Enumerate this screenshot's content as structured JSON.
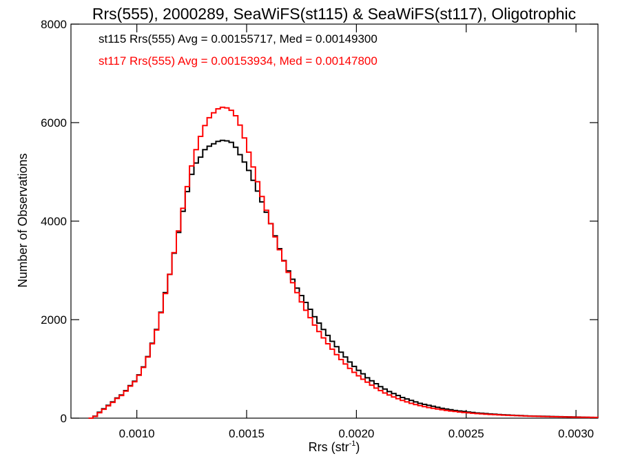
{
  "chart_data": {
    "type": "line",
    "title": "Rrs(555), 2000289, SeaWiFS(st115) & SeaWiFS(st117), Oligotrophic",
    "xlabel": "Rrs (str",
    "xlabel_sup": "-1",
    "xlabel_close": ")",
    "ylabel": "Number of Observations",
    "xlim": [
      0.0007,
      0.0031
    ],
    "ylim": [
      0,
      8000
    ],
    "x_ticks": [
      0.001,
      0.0015,
      0.002,
      0.0025,
      0.003
    ],
    "x_tick_labels": [
      "0.0010",
      "0.0015",
      "0.0020",
      "0.0025",
      "0.0030"
    ],
    "y_ticks": [
      0,
      2000,
      4000,
      6000,
      8000
    ],
    "y_tick_labels": [
      "0",
      "2000",
      "4000",
      "6000",
      "8000"
    ],
    "step": "histogram",
    "legend_position": "top-left",
    "series": [
      {
        "name": "st115",
        "color": "#000000",
        "annotation": "st115 Rrs(555) Avg = 0.00155717, Med = 0.00149300",
        "points": [
          [
            0.00078,
            0
          ],
          [
            0.0008,
            40
          ],
          [
            0.00082,
            120
          ],
          [
            0.00084,
            190
          ],
          [
            0.00086,
            260
          ],
          [
            0.00088,
            330
          ],
          [
            0.0009,
            410
          ],
          [
            0.00092,
            470
          ],
          [
            0.00094,
            560
          ],
          [
            0.00096,
            660
          ],
          [
            0.00098,
            750
          ],
          [
            0.001,
            880
          ],
          [
            0.00102,
            1040
          ],
          [
            0.00104,
            1250
          ],
          [
            0.00106,
            1520
          ],
          [
            0.00108,
            1800
          ],
          [
            0.0011,
            2150
          ],
          [
            0.00112,
            2550
          ],
          [
            0.00114,
            2920
          ],
          [
            0.00116,
            3350
          ],
          [
            0.00118,
            3770
          ],
          [
            0.0012,
            4200
          ],
          [
            0.00122,
            4600
          ],
          [
            0.00124,
            4950
          ],
          [
            0.00126,
            5180
          ],
          [
            0.00128,
            5300
          ],
          [
            0.0013,
            5450
          ],
          [
            0.00132,
            5520
          ],
          [
            0.00134,
            5570
          ],
          [
            0.00136,
            5620
          ],
          [
            0.00138,
            5640
          ],
          [
            0.0014,
            5630
          ],
          [
            0.00142,
            5600
          ],
          [
            0.00144,
            5500
          ],
          [
            0.00146,
            5350
          ],
          [
            0.00148,
            5200
          ],
          [
            0.0015,
            5030
          ],
          [
            0.00152,
            4830
          ],
          [
            0.00154,
            4610
          ],
          [
            0.00156,
            4390
          ],
          [
            0.00158,
            4180
          ],
          [
            0.0016,
            3950
          ],
          [
            0.00162,
            3700
          ],
          [
            0.00164,
            3440
          ],
          [
            0.00166,
            3200
          ],
          [
            0.00168,
            2990
          ],
          [
            0.0017,
            2820
          ],
          [
            0.00172,
            2640
          ],
          [
            0.00174,
            2490
          ],
          [
            0.00176,
            2350
          ],
          [
            0.00178,
            2210
          ],
          [
            0.0018,
            2060
          ],
          [
            0.00182,
            1930
          ],
          [
            0.00184,
            1800
          ],
          [
            0.00186,
            1680
          ],
          [
            0.00188,
            1560
          ],
          [
            0.0019,
            1450
          ],
          [
            0.00192,
            1340
          ],
          [
            0.00194,
            1240
          ],
          [
            0.00196,
            1140
          ],
          [
            0.00198,
            1050
          ],
          [
            0.002,
            970
          ],
          [
            0.00202,
            900
          ],
          [
            0.00204,
            820
          ],
          [
            0.00206,
            760
          ],
          [
            0.00208,
            700
          ],
          [
            0.0021,
            640
          ],
          [
            0.00212,
            590
          ],
          [
            0.00214,
            540
          ],
          [
            0.00216,
            500
          ],
          [
            0.00218,
            460
          ],
          [
            0.0022,
            420
          ],
          [
            0.00222,
            390
          ],
          [
            0.00224,
            360
          ],
          [
            0.00226,
            330
          ],
          [
            0.00228,
            300
          ],
          [
            0.0023,
            280
          ],
          [
            0.00232,
            260
          ],
          [
            0.00234,
            240
          ],
          [
            0.00236,
            220
          ],
          [
            0.00238,
            200
          ],
          [
            0.0024,
            185
          ],
          [
            0.00242,
            170
          ],
          [
            0.00244,
            155
          ],
          [
            0.00246,
            145
          ],
          [
            0.00248,
            135
          ],
          [
            0.0025,
            125
          ],
          [
            0.00252,
            115
          ],
          [
            0.00254,
            105
          ],
          [
            0.00256,
            100
          ],
          [
            0.00258,
            92
          ],
          [
            0.0026,
            86
          ],
          [
            0.00262,
            80
          ],
          [
            0.00264,
            74
          ],
          [
            0.00266,
            68
          ],
          [
            0.00268,
            64
          ],
          [
            0.0027,
            60
          ],
          [
            0.00272,
            56
          ],
          [
            0.00274,
            52
          ],
          [
            0.00276,
            48
          ],
          [
            0.00278,
            44
          ],
          [
            0.0028,
            42
          ],
          [
            0.00282,
            40
          ],
          [
            0.00284,
            38
          ],
          [
            0.00286,
            36
          ],
          [
            0.00288,
            34
          ],
          [
            0.0029,
            32
          ],
          [
            0.00292,
            30
          ],
          [
            0.00294,
            28
          ],
          [
            0.00296,
            26
          ],
          [
            0.00298,
            24
          ],
          [
            0.003,
            22
          ],
          [
            0.00302,
            20
          ],
          [
            0.00304,
            18
          ],
          [
            0.00306,
            16
          ],
          [
            0.00308,
            14
          ],
          [
            0.0031,
            12
          ]
        ]
      },
      {
        "name": "st117",
        "color": "#ff0000",
        "annotation": "st117 Rrs(555) Avg = 0.00153934, Med = 0.00147800",
        "points": [
          [
            0.00078,
            0
          ],
          [
            0.0008,
            35
          ],
          [
            0.00082,
            110
          ],
          [
            0.00084,
            180
          ],
          [
            0.00086,
            250
          ],
          [
            0.00088,
            320
          ],
          [
            0.0009,
            400
          ],
          [
            0.00092,
            460
          ],
          [
            0.00094,
            550
          ],
          [
            0.00096,
            650
          ],
          [
            0.00098,
            740
          ],
          [
            0.001,
            870
          ],
          [
            0.00102,
            1030
          ],
          [
            0.00104,
            1240
          ],
          [
            0.00106,
            1510
          ],
          [
            0.00108,
            1790
          ],
          [
            0.0011,
            2140
          ],
          [
            0.00112,
            2530
          ],
          [
            0.00114,
            2920
          ],
          [
            0.00116,
            3360
          ],
          [
            0.00118,
            3800
          ],
          [
            0.0012,
            4260
          ],
          [
            0.00122,
            4700
          ],
          [
            0.00124,
            5120
          ],
          [
            0.00126,
            5450
          ],
          [
            0.00128,
            5720
          ],
          [
            0.0013,
            5940
          ],
          [
            0.00132,
            6100
          ],
          [
            0.00134,
            6200
          ],
          [
            0.00136,
            6280
          ],
          [
            0.00138,
            6310
          ],
          [
            0.0014,
            6300
          ],
          [
            0.00142,
            6250
          ],
          [
            0.00144,
            6140
          ],
          [
            0.00146,
            5950
          ],
          [
            0.00148,
            5690
          ],
          [
            0.0015,
            5400
          ],
          [
            0.00152,
            5100
          ],
          [
            0.00154,
            4800
          ],
          [
            0.00156,
            4500
          ],
          [
            0.00158,
            4220
          ],
          [
            0.0016,
            3950
          ],
          [
            0.00162,
            3680
          ],
          [
            0.00164,
            3420
          ],
          [
            0.00166,
            3190
          ],
          [
            0.00168,
            2960
          ],
          [
            0.0017,
            2750
          ],
          [
            0.00172,
            2550
          ],
          [
            0.00174,
            2360
          ],
          [
            0.00176,
            2190
          ],
          [
            0.00178,
            2040
          ],
          [
            0.0018,
            1890
          ],
          [
            0.00182,
            1760
          ],
          [
            0.00184,
            1630
          ],
          [
            0.00186,
            1510
          ],
          [
            0.00188,
            1400
          ],
          [
            0.0019,
            1290
          ],
          [
            0.00192,
            1190
          ],
          [
            0.00194,
            1100
          ],
          [
            0.00196,
            1010
          ],
          [
            0.00198,
            930
          ],
          [
            0.002,
            860
          ],
          [
            0.00202,
            790
          ],
          [
            0.00204,
            730
          ],
          [
            0.00206,
            670
          ],
          [
            0.00208,
            610
          ],
          [
            0.0021,
            560
          ],
          [
            0.00212,
            510
          ],
          [
            0.00214,
            470
          ],
          [
            0.00216,
            430
          ],
          [
            0.00218,
            395
          ],
          [
            0.0022,
            360
          ],
          [
            0.00222,
            330
          ],
          [
            0.00224,
            300
          ],
          [
            0.00226,
            275
          ],
          [
            0.00228,
            255
          ],
          [
            0.0023,
            235
          ],
          [
            0.00232,
            215
          ],
          [
            0.00234,
            200
          ],
          [
            0.00236,
            185
          ],
          [
            0.00238,
            170
          ],
          [
            0.0024,
            158
          ],
          [
            0.00242,
            146
          ],
          [
            0.00244,
            135
          ],
          [
            0.00246,
            125
          ],
          [
            0.00248,
            116
          ],
          [
            0.0025,
            108
          ],
          [
            0.00252,
            100
          ],
          [
            0.00254,
            93
          ],
          [
            0.00256,
            87
          ],
          [
            0.00258,
            81
          ],
          [
            0.0026,
            76
          ],
          [
            0.00262,
            71
          ],
          [
            0.00264,
            66
          ],
          [
            0.00266,
            62
          ],
          [
            0.00268,
            58
          ],
          [
            0.0027,
            54
          ],
          [
            0.00272,
            50
          ],
          [
            0.00274,
            47
          ],
          [
            0.00276,
            44
          ],
          [
            0.00278,
            41
          ],
          [
            0.0028,
            38
          ],
          [
            0.00282,
            36
          ],
          [
            0.00284,
            34
          ],
          [
            0.00286,
            32
          ],
          [
            0.00288,
            30
          ],
          [
            0.0029,
            28
          ],
          [
            0.00292,
            26
          ],
          [
            0.00294,
            24
          ],
          [
            0.00296,
            22
          ],
          [
            0.00298,
            20
          ],
          [
            0.003,
            19
          ],
          [
            0.00302,
            18
          ],
          [
            0.00304,
            17
          ],
          [
            0.00306,
            16
          ],
          [
            0.00308,
            15
          ],
          [
            0.0031,
            14
          ]
        ]
      }
    ]
  }
}
